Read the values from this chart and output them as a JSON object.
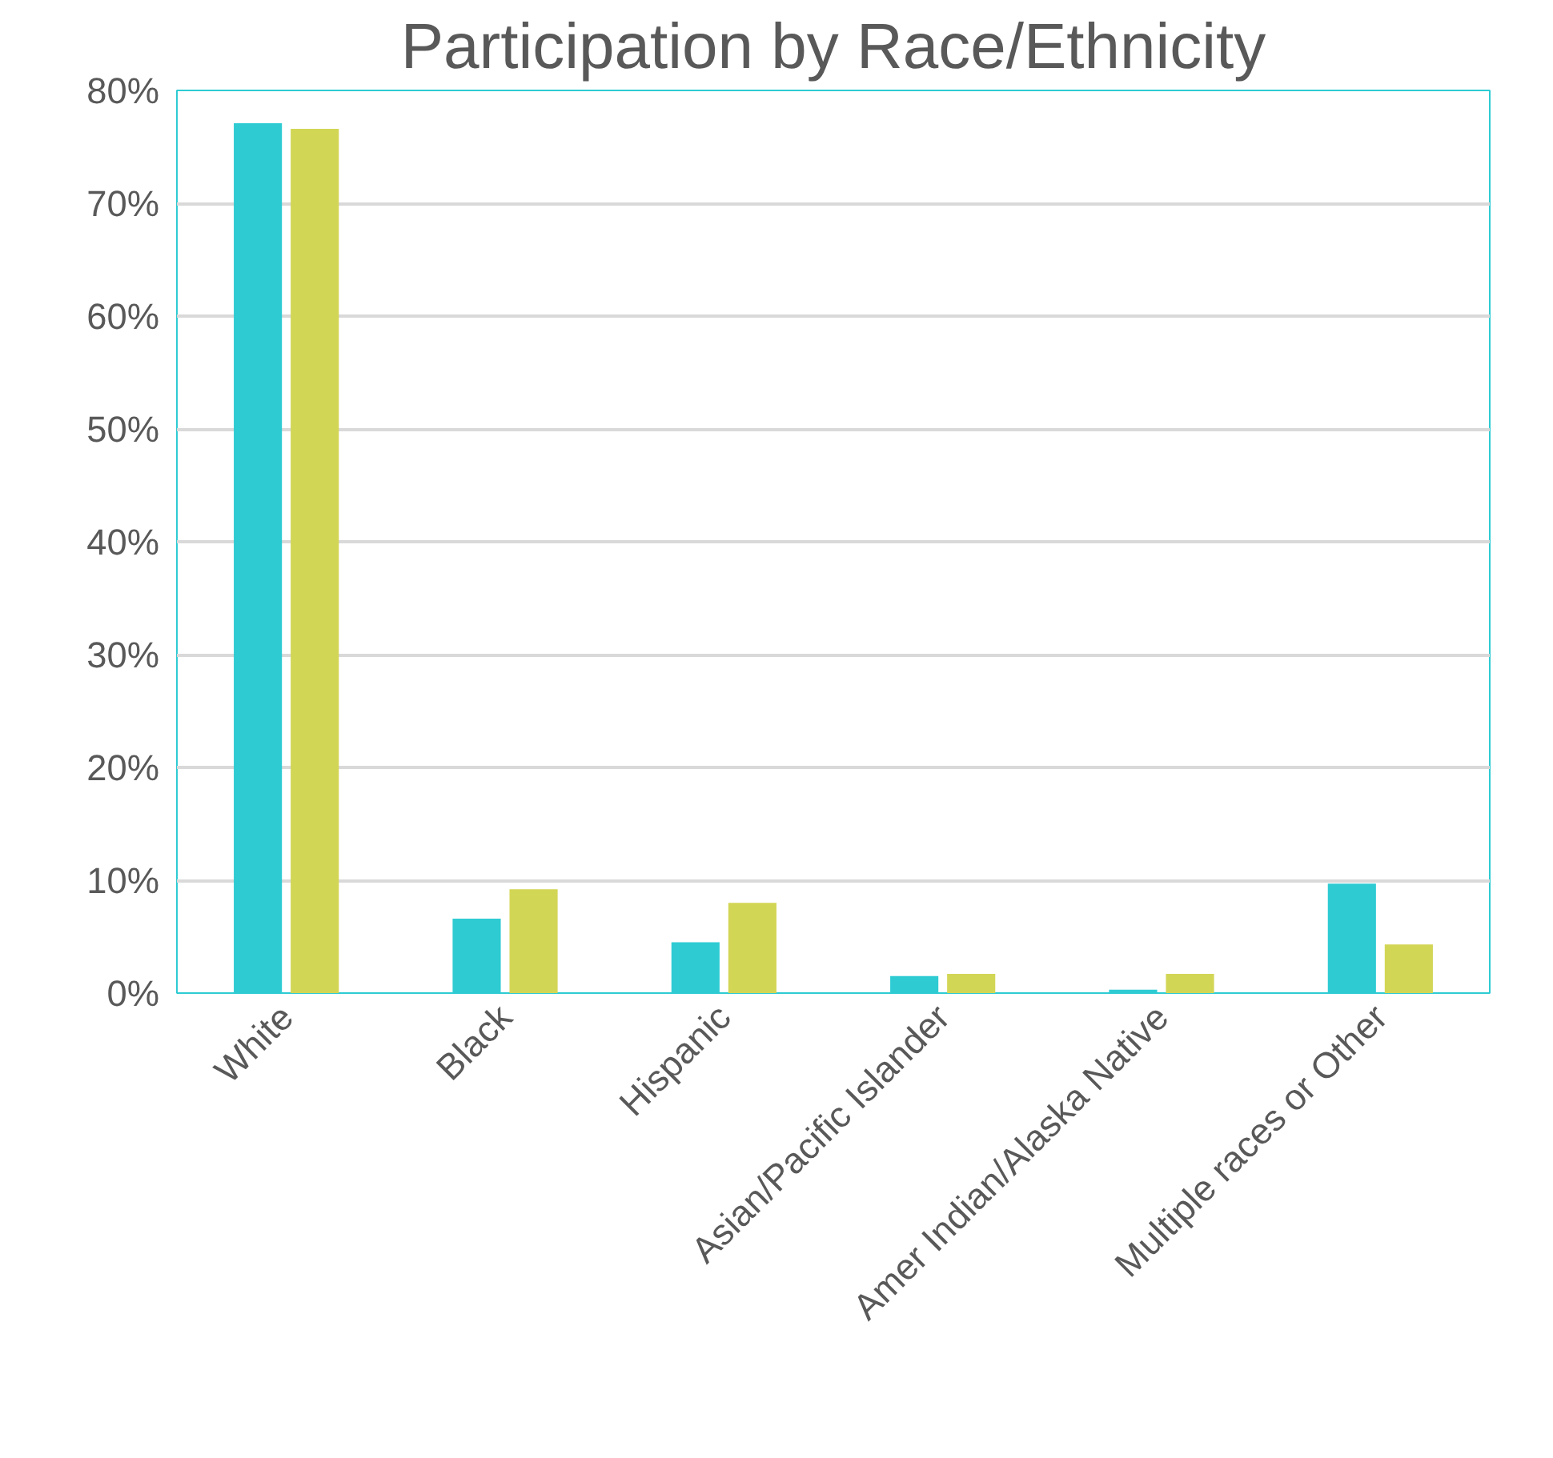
{
  "chart_data": {
    "type": "bar",
    "title": "Participation by Race/Ethnicity",
    "categories": [
      "White",
      "Black",
      "Hispanic",
      "Asian/Pacific Islander",
      "Amer Indian/Alaska Native",
      "Multiple races or Other"
    ],
    "series": [
      {
        "color": "#2ecbd3",
        "values": [
          77.1,
          6.6,
          4.5,
          1.5,
          0.3,
          9.7
        ]
      },
      {
        "color": "#d2d655",
        "values": [
          76.6,
          9.2,
          8.0,
          1.7,
          1.7,
          4.3
        ]
      }
    ],
    "ylim": [
      0,
      80
    ],
    "yticks": [
      {
        "value": 0,
        "label": "0%"
      },
      {
        "value": 10,
        "label": "10%"
      },
      {
        "value": 20,
        "label": "20%"
      },
      {
        "value": 30,
        "label": "30%"
      },
      {
        "value": 40,
        "label": "40%"
      },
      {
        "value": 50,
        "label": "50%"
      },
      {
        "value": 60,
        "label": "60%"
      },
      {
        "value": 70,
        "label": "70%"
      },
      {
        "value": 80,
        "label": "80%"
      }
    ],
    "grid": "y"
  }
}
